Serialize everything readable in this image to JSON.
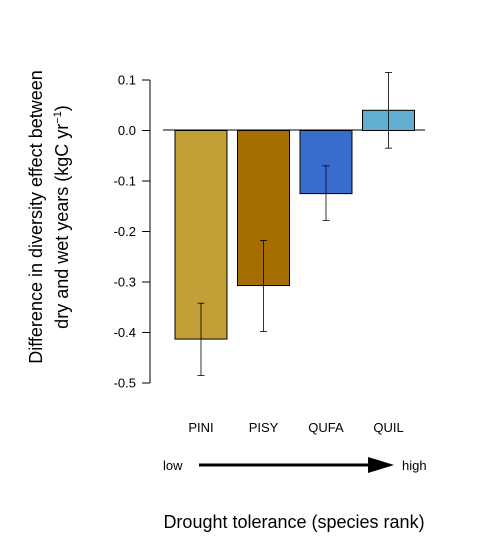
{
  "chart_data": {
    "type": "bar",
    "categories": [
      "PINI",
      "PISY",
      "QUFA",
      "QUIL"
    ],
    "values": [
      -0.413,
      -0.307,
      -0.125,
      0.04
    ],
    "error_low": [
      -0.485,
      -0.398,
      -0.178,
      -0.035
    ],
    "error_high": [
      -0.342,
      -0.218,
      -0.07,
      0.115
    ],
    "colors": [
      "#C2A035",
      "#A66E00",
      "#3A6CD0",
      "#60AFD0"
    ],
    "ylim": [
      -0.5,
      0.1
    ],
    "yticks": [
      0.1,
      0.0,
      -0.1,
      -0.2,
      -0.3,
      -0.4,
      -0.5
    ],
    "ytick_labels": [
      "0.1",
      "0.0",
      "-0.1",
      "-0.2",
      "-0.3",
      "-0.4",
      "-0.5"
    ],
    "ylabel_line1": "Difference in diversity effect between",
    "ylabel_line2_pre": "dry and wet years (kgC  yr",
    "ylabel_line2_sup": "−1",
    "ylabel_line2_post": ")",
    "xlabel": "Drought tolerance (species rank)",
    "arrow_low": "low",
    "arrow_high": "high",
    "grid": false
  }
}
